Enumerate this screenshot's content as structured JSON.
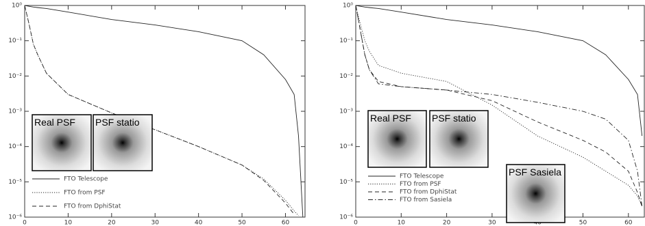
{
  "chart_data": [
    {
      "type": "line",
      "log_y": true,
      "x": [
        0,
        1,
        2,
        3,
        5,
        10,
        20,
        30,
        40,
        50,
        55,
        60,
        62,
        63,
        64
      ],
      "xlim": [
        0,
        64.5
      ],
      "xticks": [
        0,
        10,
        20,
        30,
        40,
        50,
        60
      ],
      "ylim": [
        1e-06,
        1
      ],
      "yticks": [
        {
          "value": 1,
          "label": "10⁰"
        },
        {
          "value": 0.1,
          "label": "10⁻¹"
        },
        {
          "value": 0.01,
          "label": "10⁻²"
        },
        {
          "value": 0.001,
          "label": "10⁻³"
        },
        {
          "value": 0.0001,
          "label": "10⁻⁴"
        },
        {
          "value": 1e-05,
          "label": "10⁻⁵"
        },
        {
          "value": 1e-06,
          "label": "10⁻⁶"
        }
      ],
      "insets": [
        "Real PSF",
        "PSF statio"
      ],
      "series": [
        {
          "name": "FTO Telescope",
          "color": "#222",
          "linestyle": "solid",
          "values": [
            1,
            0.95,
            0.9,
            0.87,
            0.82,
            0.65,
            0.4,
            0.28,
            0.18,
            0.1,
            0.04,
            0.008,
            0.003,
            0.0002,
            1e-06
          ]
        },
        {
          "name": "FTO from PSF",
          "color": "#222",
          "linestyle": "dotted",
          "values": [
            1,
            0.3,
            0.08,
            0.04,
            0.012,
            0.003,
            0.0009,
            0.0003,
            0.0001,
            3e-05,
            1.2e-05,
            3e-06,
            1.5e-06,
            1.1e-06,
            null
          ]
        },
        {
          "name": "FTO from DphiStat",
          "color": "#222",
          "linestyle": "dashed",
          "values": [
            1,
            0.3,
            0.08,
            0.04,
            0.012,
            0.003,
            0.0009,
            0.0003,
            0.0001,
            3e-05,
            1.1e-05,
            2.5e-06,
            1.2e-06,
            null,
            null
          ]
        }
      ]
    },
    {
      "type": "line",
      "log_y": true,
      "x": [
        0,
        1,
        2,
        3,
        5,
        10,
        20,
        30,
        40,
        50,
        55,
        60,
        62,
        63
      ],
      "xlim": [
        0,
        63.5
      ],
      "xticks": [
        0,
        10,
        20,
        30,
        40,
        50,
        60
      ],
      "ylim": [
        1e-06,
        1
      ],
      "yticks": [
        {
          "value": 1,
          "label": "10⁰"
        },
        {
          "value": 0.1,
          "label": "10⁻¹"
        },
        {
          "value": 0.01,
          "label": "10⁻²"
        },
        {
          "value": 0.001,
          "label": "10⁻³"
        },
        {
          "value": 0.0001,
          "label": "10⁻⁴"
        },
        {
          "value": 1e-05,
          "label": "10⁻⁵"
        },
        {
          "value": 1e-06,
          "label": "10⁻⁶"
        }
      ],
      "insets": [
        "Real PSF",
        "PSF statio",
        "PSF Sasiela"
      ],
      "series": [
        {
          "name": "FTO Telescope",
          "color": "#222",
          "linestyle": "solid",
          "values": [
            1,
            0.95,
            0.9,
            0.87,
            0.82,
            0.65,
            0.4,
            0.28,
            0.18,
            0.1,
            0.04,
            0.008,
            0.003,
            0.0002
          ]
        },
        {
          "name": "FTO from PSF",
          "color": "#222",
          "linestyle": "dotted",
          "values": [
            1,
            0.3,
            0.1,
            0.05,
            0.02,
            0.012,
            0.007,
            0.0015,
            0.0002,
            5e-05,
            2e-05,
            8e-06,
            4e-06,
            2e-06
          ]
        },
        {
          "name": "FTO from DphiStat",
          "color": "#222",
          "linestyle": "dashed",
          "values": [
            1,
            0.2,
            0.04,
            0.015,
            0.007,
            0.005,
            0.004,
            0.002,
            0.0005,
            0.00015,
            7e-05,
            2e-05,
            5e-06,
            2e-06
          ]
        },
        {
          "name": "FTO from Sasiela",
          "color": "#222",
          "linestyle": "dashdot",
          "values": [
            1,
            0.2,
            0.04,
            0.015,
            0.006,
            0.005,
            0.004,
            0.003,
            0.0018,
            0.001,
            0.0006,
            0.00015,
            2e-05,
            2e-06
          ]
        }
      ]
    }
  ]
}
